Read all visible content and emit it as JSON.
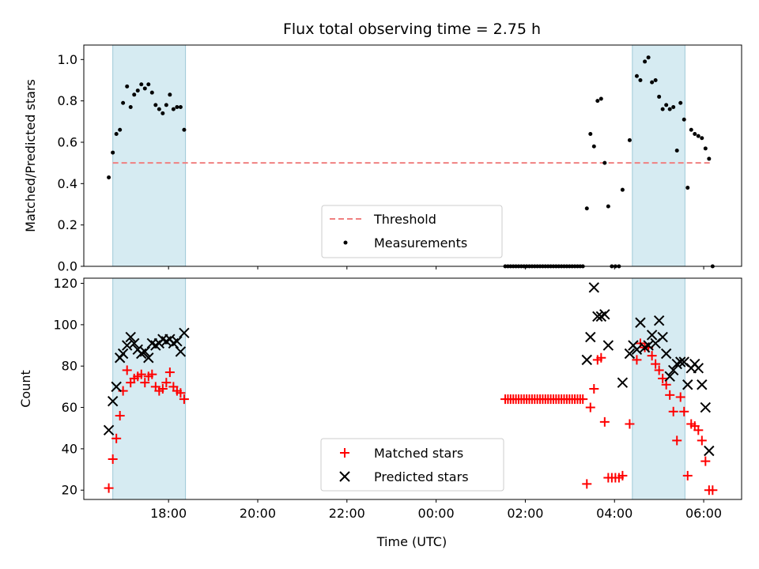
{
  "chart_data": {
    "type": "scatter",
    "title": "Flux total observing time = 2.75 h",
    "xlabel": "Time (UTC)",
    "x_unit": "hours of day (UTC), values past 24 wrap to next day",
    "xlim": [
      16.1,
      30.85
    ],
    "xticks": [
      {
        "value": 18,
        "label": "18:00"
      },
      {
        "value": 20,
        "label": "20:00"
      },
      {
        "value": 22,
        "label": "22:00"
      },
      {
        "value": 24,
        "label": "00:00"
      },
      {
        "value": 26,
        "label": "02:00"
      },
      {
        "value": 28,
        "label": "04:00"
      },
      {
        "value": 30,
        "label": "06:00"
      }
    ],
    "shaded_intervals": [
      [
        16.75,
        18.38
      ],
      [
        28.4,
        29.58
      ]
    ],
    "shade_color": "#add8e6",
    "panels": [
      {
        "ylabel": "Matched/Predicted stars",
        "ylim": [
          0,
          1.07
        ],
        "yticks": [
          "0.0",
          "0.2",
          "0.4",
          "0.6",
          "0.8",
          "1.0"
        ],
        "threshold": {
          "name": "Threshold",
          "value": 0.5,
          "x_range": [
            16.75,
            30.2
          ],
          "color": "#f08080"
        },
        "legend": {
          "position": "lower center",
          "entries": [
            "Threshold",
            "Measurements"
          ]
        },
        "series": [
          {
            "name": "Measurements",
            "marker": "dot",
            "color": "#000000",
            "points": [
              [
                16.66,
                0.43
              ],
              [
                16.75,
                0.55
              ],
              [
                16.83,
                0.64
              ],
              [
                16.91,
                0.66
              ],
              [
                16.98,
                0.79
              ],
              [
                17.07,
                0.87
              ],
              [
                17.15,
                0.77
              ],
              [
                17.23,
                0.83
              ],
              [
                17.31,
                0.85
              ],
              [
                17.39,
                0.88
              ],
              [
                17.47,
                0.86
              ],
              [
                17.55,
                0.88
              ],
              [
                17.63,
                0.84
              ],
              [
                17.71,
                0.78
              ],
              [
                17.79,
                0.76
              ],
              [
                17.87,
                0.74
              ],
              [
                17.95,
                0.78
              ],
              [
                18.03,
                0.83
              ],
              [
                18.11,
                0.76
              ],
              [
                18.19,
                0.77
              ],
              [
                18.27,
                0.77
              ],
              [
                18.35,
                0.66
              ],
              [
                25.55,
                0
              ],
              [
                25.61,
                0
              ],
              [
                25.67,
                0
              ],
              [
                25.73,
                0
              ],
              [
                25.79,
                0
              ],
              [
                25.85,
                0
              ],
              [
                25.91,
                0
              ],
              [
                25.97,
                0
              ],
              [
                26.03,
                0
              ],
              [
                26.09,
                0
              ],
              [
                26.15,
                0
              ],
              [
                26.21,
                0
              ],
              [
                26.27,
                0
              ],
              [
                26.33,
                0
              ],
              [
                26.39,
                0
              ],
              [
                26.45,
                0
              ],
              [
                26.51,
                0
              ],
              [
                26.57,
                0
              ],
              [
                26.63,
                0
              ],
              [
                26.69,
                0
              ],
              [
                26.75,
                0
              ],
              [
                26.81,
                0
              ],
              [
                26.87,
                0
              ],
              [
                26.93,
                0
              ],
              [
                26.99,
                0
              ],
              [
                27.05,
                0
              ],
              [
                27.11,
                0
              ],
              [
                27.17,
                0
              ],
              [
                27.23,
                0
              ],
              [
                27.29,
                0
              ],
              [
                27.38,
                0.28
              ],
              [
                27.46,
                0.64
              ],
              [
                27.54,
                0.58
              ],
              [
                27.62,
                0.8
              ],
              [
                27.7,
                0.81
              ],
              [
                27.78,
                0.5
              ],
              [
                27.86,
                0.29
              ],
              [
                27.94,
                0
              ],
              [
                28.02,
                0
              ],
              [
                28.1,
                0
              ],
              [
                28.18,
                0.37
              ],
              [
                28.34,
                0.61
              ],
              [
                28.5,
                0.92
              ],
              [
                28.58,
                0.9
              ],
              [
                28.68,
                0.99
              ],
              [
                28.76,
                1.01
              ],
              [
                28.84,
                0.89
              ],
              [
                28.92,
                0.9
              ],
              [
                29.0,
                0.82
              ],
              [
                29.08,
                0.76
              ],
              [
                29.16,
                0.78
              ],
              [
                29.24,
                0.76
              ],
              [
                29.32,
                0.77
              ],
              [
                29.4,
                0.56
              ],
              [
                29.48,
                0.79
              ],
              [
                29.56,
                0.71
              ],
              [
                29.64,
                0.38
              ],
              [
                29.72,
                0.66
              ],
              [
                29.8,
                0.64
              ],
              [
                29.88,
                0.63
              ],
              [
                29.96,
                0.62
              ],
              [
                30.04,
                0.57
              ],
              [
                30.12,
                0.52
              ],
              [
                30.2,
                0
              ]
            ]
          }
        ]
      },
      {
        "ylabel": "Count",
        "ylim": [
          15.5,
          122.5
        ],
        "yticks": [
          "20",
          "40",
          "60",
          "80",
          "100",
          "120"
        ],
        "legend": {
          "position": "lower center",
          "entries": [
            "Matched stars",
            "Predicted stars"
          ]
        },
        "series": [
          {
            "name": "Matched stars",
            "marker": "plus",
            "color": "#ff0000",
            "points": [
              [
                16.66,
                21
              ],
              [
                16.75,
                35
              ],
              [
                16.83,
                45
              ],
              [
                16.91,
                56
              ],
              [
                16.98,
                68
              ],
              [
                17.07,
                78
              ],
              [
                17.15,
                72
              ],
              [
                17.23,
                74
              ],
              [
                17.31,
                75
              ],
              [
                17.39,
                76
              ],
              [
                17.47,
                72
              ],
              [
                17.55,
                75
              ],
              [
                17.63,
                76
              ],
              [
                17.71,
                70
              ],
              [
                17.79,
                68
              ],
              [
                17.87,
                69
              ],
              [
                17.95,
                72
              ],
              [
                18.03,
                77
              ],
              [
                18.11,
                70
              ],
              [
                18.19,
                68
              ],
              [
                18.27,
                67
              ],
              [
                18.35,
                64
              ],
              [
                25.55,
                64
              ],
              [
                25.61,
                64
              ],
              [
                25.67,
                64
              ],
              [
                25.73,
                64
              ],
              [
                25.79,
                64
              ],
              [
                25.85,
                64
              ],
              [
                25.91,
                64
              ],
              [
                25.97,
                64
              ],
              [
                26.03,
                64
              ],
              [
                26.09,
                64
              ],
              [
                26.15,
                64
              ],
              [
                26.21,
                64
              ],
              [
                26.27,
                64
              ],
              [
                26.33,
                64
              ],
              [
                26.39,
                64
              ],
              [
                26.45,
                64
              ],
              [
                26.51,
                64
              ],
              [
                26.57,
                64
              ],
              [
                26.63,
                64
              ],
              [
                26.69,
                64
              ],
              [
                26.75,
                64
              ],
              [
                26.81,
                64
              ],
              [
                26.87,
                64
              ],
              [
                26.93,
                64
              ],
              [
                26.99,
                64
              ],
              [
                27.05,
                64
              ],
              [
                27.11,
                64
              ],
              [
                27.17,
                64
              ],
              [
                27.23,
                64
              ],
              [
                27.29,
                64
              ],
              [
                27.38,
                23
              ],
              [
                27.46,
                60
              ],
              [
                27.54,
                69
              ],
              [
                27.62,
                83
              ],
              [
                27.7,
                84
              ],
              [
                27.78,
                53
              ],
              [
                27.86,
                26
              ],
              [
                27.94,
                26
              ],
              [
                28.02,
                26
              ],
              [
                28.1,
                26
              ],
              [
                28.18,
                27
              ],
              [
                28.34,
                52
              ],
              [
                28.5,
                83
              ],
              [
                28.58,
                91
              ],
              [
                28.68,
                89
              ],
              [
                28.76,
                89
              ],
              [
                28.84,
                85
              ],
              [
                28.92,
                81
              ],
              [
                29.0,
                78
              ],
              [
                29.08,
                74
              ],
              [
                29.16,
                71
              ],
              [
                29.24,
                66
              ],
              [
                29.32,
                58
              ],
              [
                29.4,
                44
              ],
              [
                29.48,
                65
              ],
              [
                29.56,
                58
              ],
              [
                29.64,
                27
              ],
              [
                29.72,
                52
              ],
              [
                29.8,
                51
              ],
              [
                29.88,
                49
              ],
              [
                29.96,
                44
              ],
              [
                30.04,
                34
              ],
              [
                30.12,
                20
              ],
              [
                30.2,
                20
              ]
            ]
          },
          {
            "name": "Predicted stars",
            "marker": "x",
            "color": "#000000",
            "points": [
              [
                16.66,
                49
              ],
              [
                16.75,
                63
              ],
              [
                16.83,
                70
              ],
              [
                16.91,
                84
              ],
              [
                16.98,
                86
              ],
              [
                17.07,
                90
              ],
              [
                17.15,
                94
              ],
              [
                17.23,
                91
              ],
              [
                17.31,
                88
              ],
              [
                17.39,
                86
              ],
              [
                17.47,
                87
              ],
              [
                17.55,
                84
              ],
              [
                17.63,
                91
              ],
              [
                17.71,
                90
              ],
              [
                17.79,
                91
              ],
              [
                17.87,
                93
              ],
              [
                17.95,
                92
              ],
              [
                18.03,
                93
              ],
              [
                18.11,
                91
              ],
              [
                18.19,
                92
              ],
              [
                18.27,
                87
              ],
              [
                18.35,
                96
              ],
              [
                27.38,
                83
              ],
              [
                27.46,
                94
              ],
              [
                27.54,
                118
              ],
              [
                27.62,
                104
              ],
              [
                27.7,
                104
              ],
              [
                27.78,
                105
              ],
              [
                27.86,
                90
              ],
              [
                28.18,
                72
              ],
              [
                28.34,
                86
              ],
              [
                28.42,
                90
              ],
              [
                28.5,
                88
              ],
              [
                28.58,
                101
              ],
              [
                28.68,
                89
              ],
              [
                28.76,
                90
              ],
              [
                28.84,
                95
              ],
              [
                28.92,
                91
              ],
              [
                29.0,
                102
              ],
              [
                29.08,
                94
              ],
              [
                29.16,
                86
              ],
              [
                29.24,
                75
              ],
              [
                29.32,
                78
              ],
              [
                29.4,
                81
              ],
              [
                29.48,
                82
              ],
              [
                29.56,
                82
              ],
              [
                29.64,
                71
              ],
              [
                29.72,
                79
              ],
              [
                29.8,
                81
              ],
              [
                29.88,
                79
              ],
              [
                29.96,
                71
              ],
              [
                30.04,
                60
              ],
              [
                30.12,
                39
              ]
            ]
          }
        ]
      }
    ]
  }
}
